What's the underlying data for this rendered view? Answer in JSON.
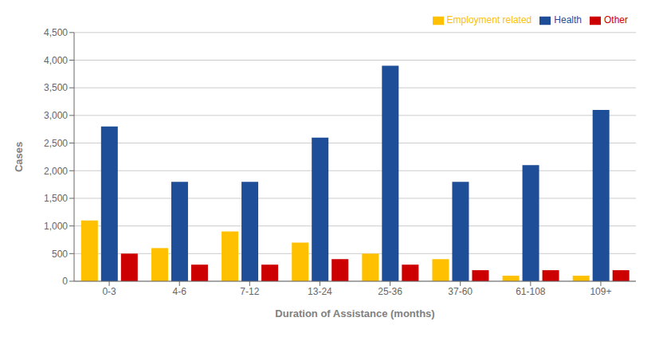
{
  "chart_data": {
    "type": "bar",
    "xlabel": "Duration of Assistance (months)",
    "ylabel": "Cases",
    "categories": [
      "0-3",
      "4-6",
      "7-12",
      "13-24",
      "25-36",
      "37-60",
      "61-108",
      "109+"
    ],
    "series": [
      {
        "name": "Employment related",
        "color": "#FFC000",
        "values": [
          1100,
          600,
          900,
          700,
          500,
          400,
          100,
          100
        ]
      },
      {
        "name": "Health",
        "color": "#1F4E99",
        "values": [
          2800,
          1800,
          1800,
          2600,
          3900,
          1800,
          2100,
          3100
        ]
      },
      {
        "name": "Other",
        "color": "#CC0000",
        "values": [
          500,
          300,
          300,
          400,
          300,
          200,
          200,
          200
        ]
      }
    ],
    "ylim": [
      0,
      4500
    ],
    "yticks": [
      0,
      500,
      {
        "value": 1000,
        "label": "1,000"
      },
      {
        "value": 1500,
        "label": "1,500"
      },
      {
        "value": 2000,
        "label": "2,000"
      },
      {
        "value": 2500,
        "label": "2,500"
      },
      {
        "value": 3000,
        "label": "3,000"
      },
      {
        "value": 3500,
        "label": "3,500"
      },
      {
        "value": 4000,
        "label": "4,000"
      },
      {
        "value": 4500,
        "label": "4,500"
      }
    ],
    "grid": true,
    "legend": "upper right"
  }
}
